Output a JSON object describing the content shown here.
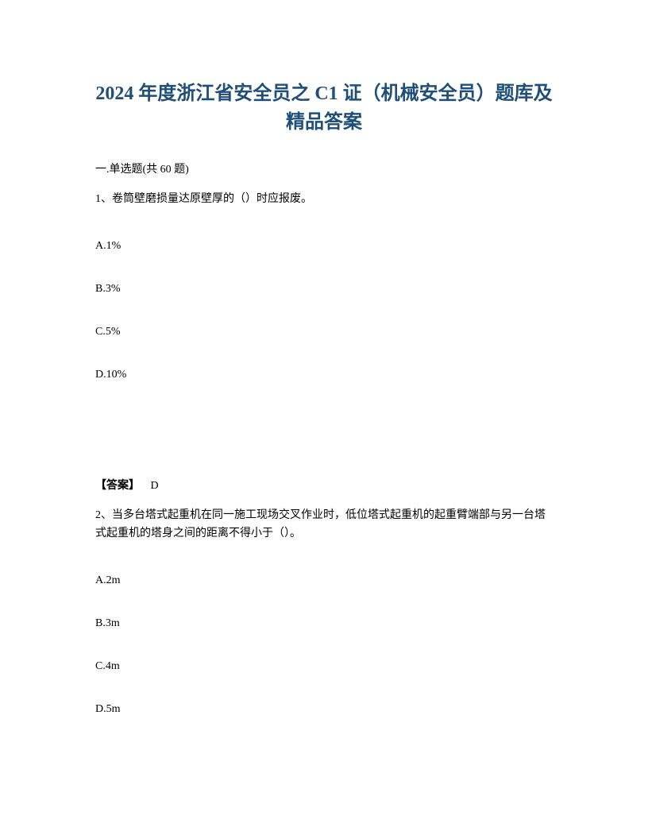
{
  "title": "2024 年度浙江省安全员之 C1 证（机械安全员）题库及精品答案",
  "section_header": "一.单选题(共 60 题)",
  "question1": {
    "text": "1、卷筒壁磨损量达原壁厚的（）时应报废。",
    "options": {
      "a": "A.1%",
      "b": "B.3%",
      "c": "C.5%",
      "d": "D.10%"
    },
    "answer_label": "【答案】",
    "answer_value": "D"
  },
  "question2": {
    "text": "2、当多台塔式起重机在同一施工现场交叉作业时，低位塔式起重机的起重臂端部与另一台塔式起重机的塔身之间的距离不得小于（）。",
    "options": {
      "a": "A.2m",
      "b": "B.3m",
      "c": "C.4m",
      "d": "D.5m"
    }
  }
}
